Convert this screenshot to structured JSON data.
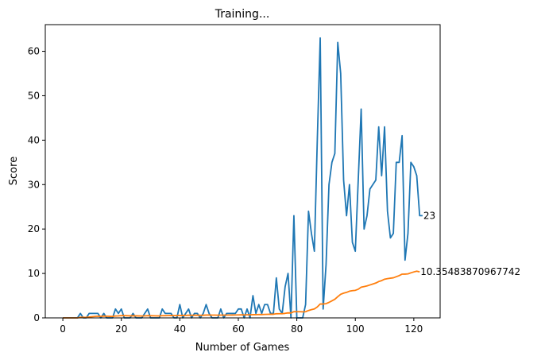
{
  "chart_data": {
    "type": "line",
    "title": "Training...",
    "xlabel": "Number of Games",
    "ylabel": "Score",
    "xlim": [
      -6,
      129
    ],
    "ylim": [
      0,
      66
    ],
    "xticks": [
      0,
      20,
      40,
      60,
      80,
      100,
      120
    ],
    "yticks": [
      0,
      10,
      20,
      30,
      40,
      50,
      60
    ],
    "grid": false,
    "series": [
      {
        "color": "#1f77b4",
        "values": [
          0,
          0,
          0,
          0,
          0,
          0,
          1,
          0,
          0,
          1,
          1,
          1,
          1,
          0,
          1,
          0,
          0,
          0,
          2,
          1,
          2,
          0,
          0,
          0,
          1,
          0,
          0,
          0,
          1,
          2,
          0,
          0,
          0,
          0,
          2,
          1,
          1,
          1,
          0,
          0,
          3,
          0,
          1,
          2,
          0,
          1,
          1,
          0,
          1,
          3,
          1,
          0,
          0,
          0,
          2,
          0,
          1,
          1,
          1,
          1,
          2,
          2,
          0,
          2,
          0,
          5,
          1,
          3,
          1,
          3,
          3,
          1,
          1,
          9,
          2,
          1,
          7,
          10,
          0,
          23,
          0,
          0,
          0,
          3,
          24,
          19,
          15,
          40,
          63,
          2,
          12,
          30,
          35,
          37,
          62,
          55,
          31,
          23,
          30,
          17,
          15,
          31,
          47,
          20,
          23,
          29,
          30,
          31,
          43,
          32,
          43,
          24,
          18,
          19,
          35,
          35,
          41,
          13,
          19,
          35,
          34,
          32,
          23,
          23
        ]
      },
      {
        "color": "#ff7f0e",
        "values": [
          0,
          0,
          0,
          0,
          0,
          0,
          0.14,
          0.13,
          0.11,
          0.2,
          0.27,
          0.33,
          0.38,
          0.36,
          0.4,
          0.38,
          0.35,
          0.33,
          0.42,
          0.45,
          0.52,
          0.5,
          0.48,
          0.46,
          0.48,
          0.46,
          0.44,
          0.43,
          0.45,
          0.5,
          0.48,
          0.47,
          0.45,
          0.44,
          0.49,
          0.5,
          0.51,
          0.53,
          0.51,
          0.5,
          0.56,
          0.55,
          0.56,
          0.59,
          0.58,
          0.59,
          0.6,
          0.58,
          0.59,
          0.64,
          0.65,
          0.63,
          0.62,
          0.61,
          0.63,
          0.62,
          0.63,
          0.63,
          0.64,
          0.65,
          0.67,
          0.69,
          0.67,
          0.69,
          0.69,
          0.73,
          0.73,
          0.76,
          0.75,
          0.78,
          0.81,
          0.82,
          0.82,
          0.93,
          0.94,
          0.94,
          1.02,
          1.13,
          1.11,
          1.4,
          1.38,
          1.38,
          1.36,
          1.39,
          1.66,
          1.86,
          2.02,
          2.46,
          3.13,
          3.12,
          3.2,
          3.49,
          3.84,
          4.19,
          4.78,
          5.31,
          5.57,
          5.74,
          6.01,
          6.12,
          6.2,
          6.45,
          6.9,
          7.05,
          7.2,
          7.41,
          7.63,
          7.84,
          8.18,
          8.39,
          8.7,
          8.84,
          8.93,
          9.02,
          9.27,
          9.51,
          9.84,
          9.85,
          9.91,
          10.14,
          10.34,
          10.51,
          10.35483870967742
        ]
      }
    ],
    "end_labels": [
      "23",
      "10.35483870967742"
    ]
  }
}
